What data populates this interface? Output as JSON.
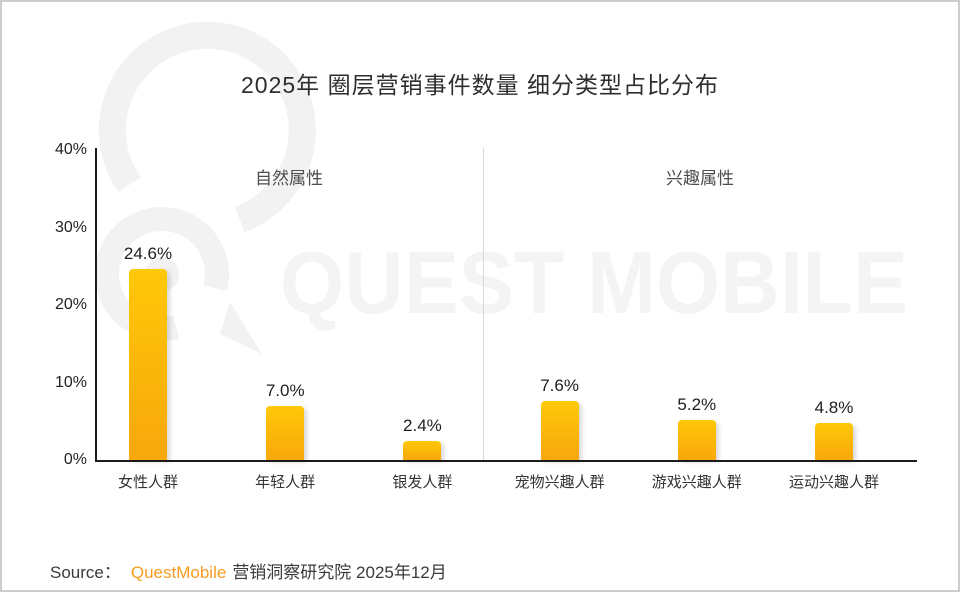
{
  "page": {
    "watermark": {
      "text": "QUEST MOBILE",
      "logo_icon": "questmobile-logo"
    },
    "source": {
      "prefix": "Source：",
      "brand": "QuestMobile",
      "suffix": "营销洞察研究院 2025年12月",
      "brand_color": "#F99B1E"
    }
  },
  "chart_data": {
    "type": "bar",
    "title": "2025年 圈层营销事件数量 细分类型占比分布",
    "categories": [
      "女性人群",
      "年轻人群",
      "银发人群",
      "宠物兴趣人群",
      "游戏兴趣人群",
      "运动兴趣人群"
    ],
    "values": [
      24.6,
      7.0,
      2.4,
      7.6,
      5.2,
      4.8
    ],
    "value_labels": [
      "24.6%",
      "7.0%",
      "2.4%",
      "7.6%",
      "5.2%",
      "4.8%"
    ],
    "sections": [
      {
        "label": "自然属性",
        "category_indexes": [
          0,
          1,
          2
        ]
      },
      {
        "label": "兴趣属性",
        "category_indexes": [
          3,
          4,
          5
        ]
      }
    ],
    "y_ticks": [
      "0%",
      "10%",
      "20%",
      "30%",
      "40%"
    ],
    "ylim": [
      0,
      40
    ],
    "grid": false,
    "legend": "none",
    "bar_color_top": "#FFC808",
    "bar_color_bottom": "#F8A70C"
  }
}
